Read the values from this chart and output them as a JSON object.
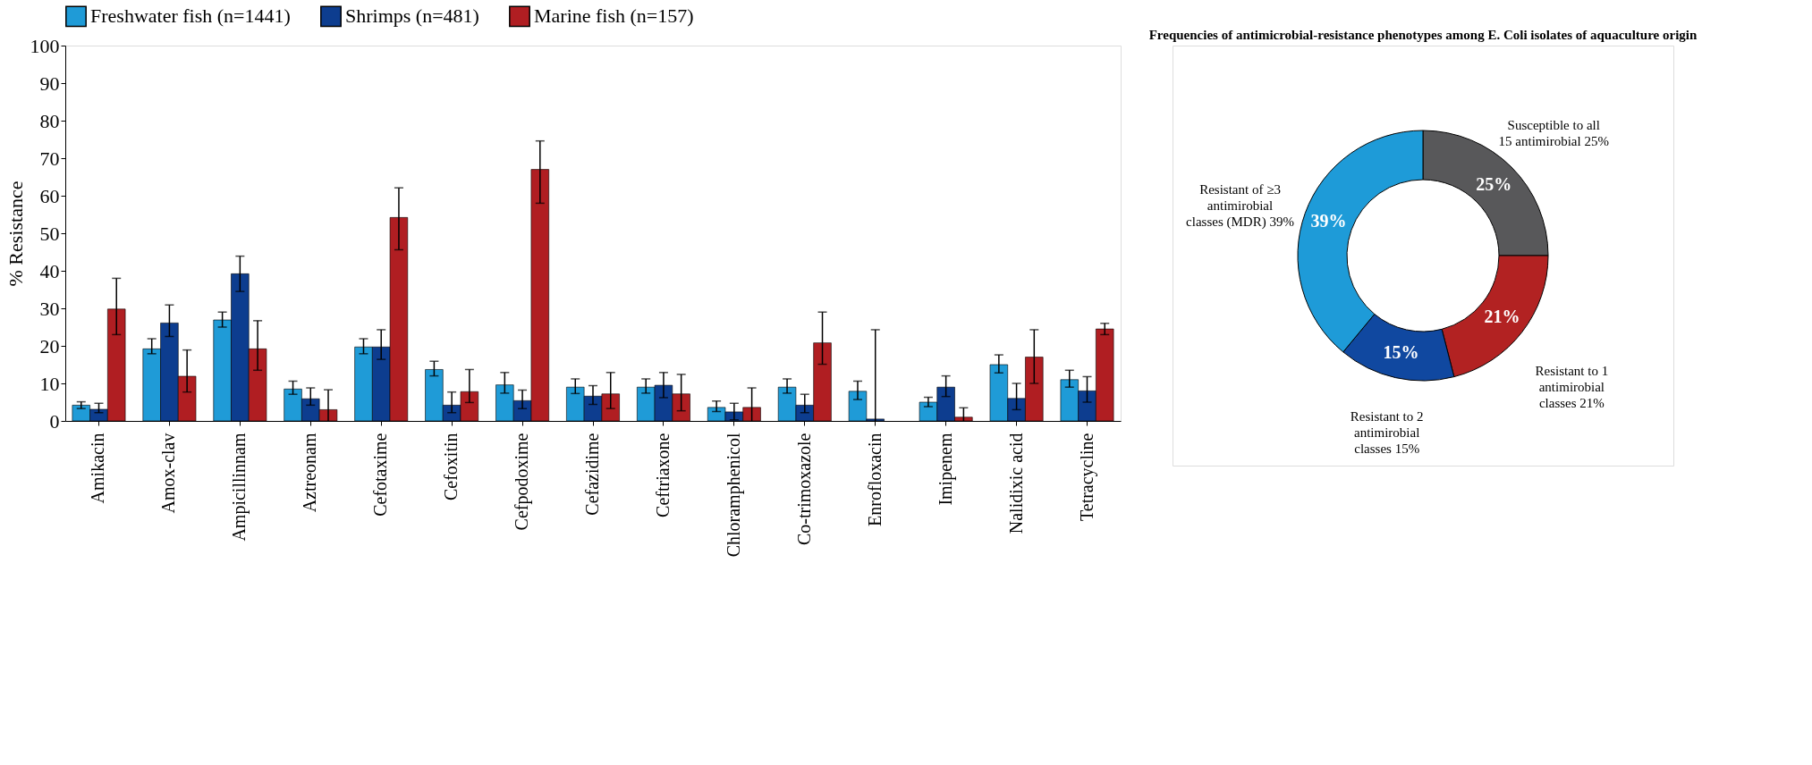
{
  "chart_data": [
    {
      "type": "bar",
      "ylabel": "% Resistance",
      "ylim": [
        0,
        100
      ],
      "yticks": [
        0,
        10,
        20,
        30,
        40,
        50,
        60,
        70,
        80,
        90,
        100
      ],
      "grid": false,
      "legend": "top",
      "categories": [
        "Amikacin",
        "Amox-clav",
        "Ampicillinnam",
        "Aztreonam",
        "Cefotaxime",
        "Cefoxitin",
        "Cefpodoxime",
        "Cefazidime",
        "Ceftriaxone",
        "Chloramphenicol",
        "Co-trimoxazole",
        "Enrofloxacin",
        "Imipenem",
        "Nalidixic acid",
        "Tetracycline"
      ],
      "series": [
        {
          "name": "Freshwater fish (n=1441)",
          "color": "#1f9bd7",
          "values": [
            4.2,
            19.2,
            26.9,
            8.5,
            19.7,
            13.7,
            9.6,
            9.0,
            9.0,
            3.6,
            9.0,
            7.9,
            5.0,
            15.0,
            11.0
          ],
          "errors": [
            [
              3.3,
              5.1
            ],
            [
              17.9,
              21.9
            ],
            [
              25,
              29
            ],
            [
              7.1,
              10.6
            ],
            [
              17.9,
              21.9
            ],
            [
              12,
              15.9
            ],
            [
              7.4,
              12.9
            ],
            [
              7.3,
              11.2
            ],
            [
              7.4,
              11.2
            ],
            [
              2.5,
              5.3
            ],
            [
              7.4,
              11.2
            ],
            [
              5.7,
              10.6
            ],
            [
              3.8,
              6.3
            ],
            [
              12.8,
              17.6
            ],
            [
              9,
              13.5
            ]
          ]
        },
        {
          "name": "Shrimps (n=481)",
          "color": "#0d3d8f",
          "values": [
            3.1,
            26.1,
            39.2,
            5.9,
            19.7,
            4.2,
            5.4,
            6.6,
            9.5,
            2.4,
            4.2,
            0.5,
            9.0,
            6.0,
            8.0
          ],
          "errors": [
            [
              2.2,
              4.7
            ],
            [
              22.5,
              30.9
            ],
            [
              34.5,
              43.9
            ],
            [
              4.2,
              8.8
            ],
            [
              16.4,
              24.3
            ],
            [
              2.2,
              7.7
            ],
            [
              3.3,
              8.2
            ],
            [
              4.4,
              9.4
            ],
            [
              6.2,
              12.9
            ],
            [
              0.3,
              4.7
            ],
            [
              2.2,
              7.1
            ],
            [
              0,
              24.3
            ],
            [
              6.5,
              12
            ],
            [
              3,
              10
            ],
            [
              5,
              11.8
            ]
          ]
        },
        {
          "name": "Marine fish (n=157)",
          "color": "#b01e22",
          "values": [
            29.8,
            11.9,
            19.2,
            3.0,
            54.2,
            7.8,
            67.0,
            7.2,
            7.2,
            3.6,
            20.8,
            null,
            1.0,
            17.0,
            24.5
          ],
          "errors": [
            [
              23,
              38
            ],
            [
              7.7,
              18.9
            ],
            [
              13.5,
              26.7
            ],
            [
              0,
              8.3
            ],
            [
              45.6,
              62.1
            ],
            [
              4.9,
              13.7
            ],
            [
              58,
              74.6
            ],
            [
              3.3,
              12.9
            ],
            [
              2.7,
              12.4
            ],
            [
              0,
              8.8
            ],
            [
              15.1,
              29
            ],
            null,
            [
              0,
              3.5
            ],
            [
              10,
              24.3
            ],
            [
              23,
              26
            ]
          ]
        }
      ]
    },
    {
      "type": "donut",
      "title": "Frequencies of antimicrobial-resistance phenotypes among E. Coli isolates of aquaculture origin",
      "value_labels": [
        "25%",
        "21%",
        "15%",
        "39%"
      ],
      "categories": [
        "Susceptible to all 15 antimirobial 25%",
        "Resistant to 1 antimirobial classes 21%",
        "Resistant to 2 antimirobial classes 15%",
        "Resistant of ≥3 antimirobial classes (MDR) 39%"
      ],
      "values": [
        25,
        21,
        15,
        39
      ],
      "colors": [
        "#58585a",
        "#b22222",
        "#1048a0",
        "#1e9bd8"
      ]
    }
  ]
}
